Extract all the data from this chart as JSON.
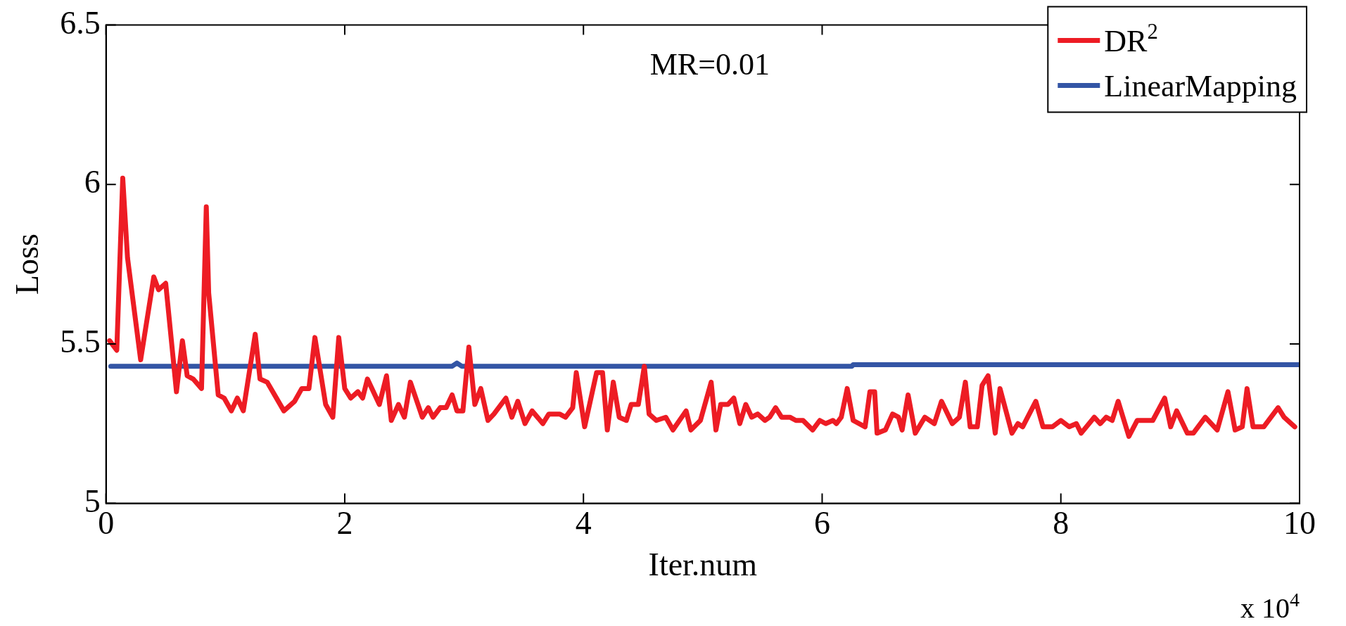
{
  "chart_data": {
    "type": "line",
    "title": "MR=0.01",
    "xlabel": "Iter.num",
    "ylabel": "Loss",
    "annotations": [
      "x 10$^{4}$"
    ],
    "xlim": [
      0,
      10
    ],
    "xticks": [
      0,
      2,
      4,
      6,
      8,
      10
    ],
    "ylim": [
      5,
      6.5
    ],
    "yticks": [
      5,
      5.5,
      6,
      6.5
    ],
    "legend": "top right",
    "grid": false,
    "marker": "none",
    "line_style": "solid",
    "series": [
      {
        "name": "DR$^{2}$",
        "color": "#ed1c24",
        "x": [
          0.03,
          0.09,
          0.14,
          0.18,
          0.29,
          0.4,
          0.44,
          0.5,
          0.59,
          0.64,
          0.68,
          0.73,
          0.8,
          0.84,
          0.86,
          0.94,
          0.99,
          1.05,
          1.1,
          1.15,
          1.25,
          1.29,
          1.35,
          1.49,
          1.58,
          1.64,
          1.7,
          1.75,
          1.84,
          1.9,
          1.95,
          2.0,
          2.05,
          2.11,
          2.15,
          2.19,
          2.29,
          2.35,
          2.39,
          2.45,
          2.5,
          2.55,
          2.65,
          2.7,
          2.74,
          2.8,
          2.85,
          2.9,
          2.94,
          2.99,
          3.04,
          3.09,
          3.14,
          3.2,
          3.25,
          3.35,
          3.4,
          3.45,
          3.51,
          3.57,
          3.66,
          3.71,
          3.8,
          3.85,
          3.91,
          3.94,
          4.01,
          4.11,
          4.16,
          4.2,
          4.25,
          4.3,
          4.36,
          4.4,
          4.46,
          4.51,
          4.55,
          4.61,
          4.69,
          4.75,
          4.86,
          4.9,
          4.98,
          5.07,
          5.11,
          5.15,
          5.21,
          5.26,
          5.31,
          5.36,
          5.41,
          5.46,
          5.52,
          5.56,
          5.61,
          5.66,
          5.73,
          5.78,
          5.84,
          5.92,
          5.98,
          6.03,
          6.09,
          6.12,
          6.16,
          6.21,
          6.26,
          6.36,
          6.4,
          6.44,
          6.46,
          6.53,
          6.59,
          6.64,
          6.67,
          6.72,
          6.78,
          6.86,
          6.94,
          7.0,
          7.09,
          7.15,
          7.2,
          7.24,
          7.3,
          7.34,
          7.39,
          7.45,
          7.49,
          7.59,
          7.64,
          7.68,
          7.79,
          7.85,
          7.93,
          8.0,
          8.07,
          8.13,
          8.17,
          8.28,
          8.33,
          8.38,
          8.43,
          8.48,
          8.57,
          8.64,
          8.77,
          8.87,
          8.92,
          8.97,
          9.06,
          9.11,
          9.21,
          9.31,
          9.4,
          9.46,
          9.52,
          9.56,
          9.61,
          9.7,
          9.82,
          9.87,
          9.96
        ],
        "values": [
          5.51,
          5.48,
          6.02,
          5.77,
          5.45,
          5.71,
          5.67,
          5.69,
          5.35,
          5.51,
          5.4,
          5.39,
          5.36,
          5.93,
          5.66,
          5.34,
          5.33,
          5.29,
          5.33,
          5.29,
          5.53,
          5.39,
          5.38,
          5.29,
          5.32,
          5.36,
          5.36,
          5.52,
          5.31,
          5.27,
          5.52,
          5.36,
          5.33,
          5.35,
          5.33,
          5.39,
          5.31,
          5.4,
          5.26,
          5.31,
          5.27,
          5.38,
          5.27,
          5.3,
          5.27,
          5.3,
          5.3,
          5.34,
          5.29,
          5.29,
          5.49,
          5.31,
          5.36,
          5.26,
          5.28,
          5.33,
          5.27,
          5.32,
          5.25,
          5.29,
          5.25,
          5.28,
          5.28,
          5.27,
          5.3,
          5.41,
          5.24,
          5.41,
          5.41,
          5.23,
          5.38,
          5.27,
          5.26,
          5.31,
          5.31,
          5.43,
          5.28,
          5.26,
          5.27,
          5.23,
          5.29,
          5.23,
          5.26,
          5.38,
          5.23,
          5.31,
          5.31,
          5.33,
          5.25,
          5.31,
          5.27,
          5.28,
          5.26,
          5.27,
          5.3,
          5.27,
          5.27,
          5.26,
          5.26,
          5.23,
          5.26,
          5.25,
          5.26,
          5.25,
          5.27,
          5.36,
          5.26,
          5.24,
          5.35,
          5.35,
          5.22,
          5.23,
          5.28,
          5.27,
          5.23,
          5.34,
          5.22,
          5.27,
          5.25,
          5.32,
          5.25,
          5.27,
          5.38,
          5.24,
          5.24,
          5.37,
          5.4,
          5.22,
          5.36,
          5.22,
          5.25,
          5.24,
          5.32,
          5.24,
          5.24,
          5.26,
          5.24,
          5.25,
          5.22,
          5.27,
          5.25,
          5.27,
          5.26,
          5.32,
          5.21,
          5.26,
          5.26,
          5.33,
          5.24,
          5.29,
          5.22,
          5.22,
          5.27,
          5.23,
          5.35,
          5.23,
          5.24,
          5.36,
          5.24,
          5.24,
          5.3,
          5.27,
          5.24
        ]
      },
      {
        "name": "LinearMapping",
        "color": "#3355a5",
        "x": [
          0.04,
          2.9,
          2.94,
          2.98,
          6.25,
          6.26,
          10
        ],
        "values": [
          5.43,
          5.43,
          5.44,
          5.43,
          5.43,
          5.435,
          5.435
        ]
      }
    ]
  }
}
